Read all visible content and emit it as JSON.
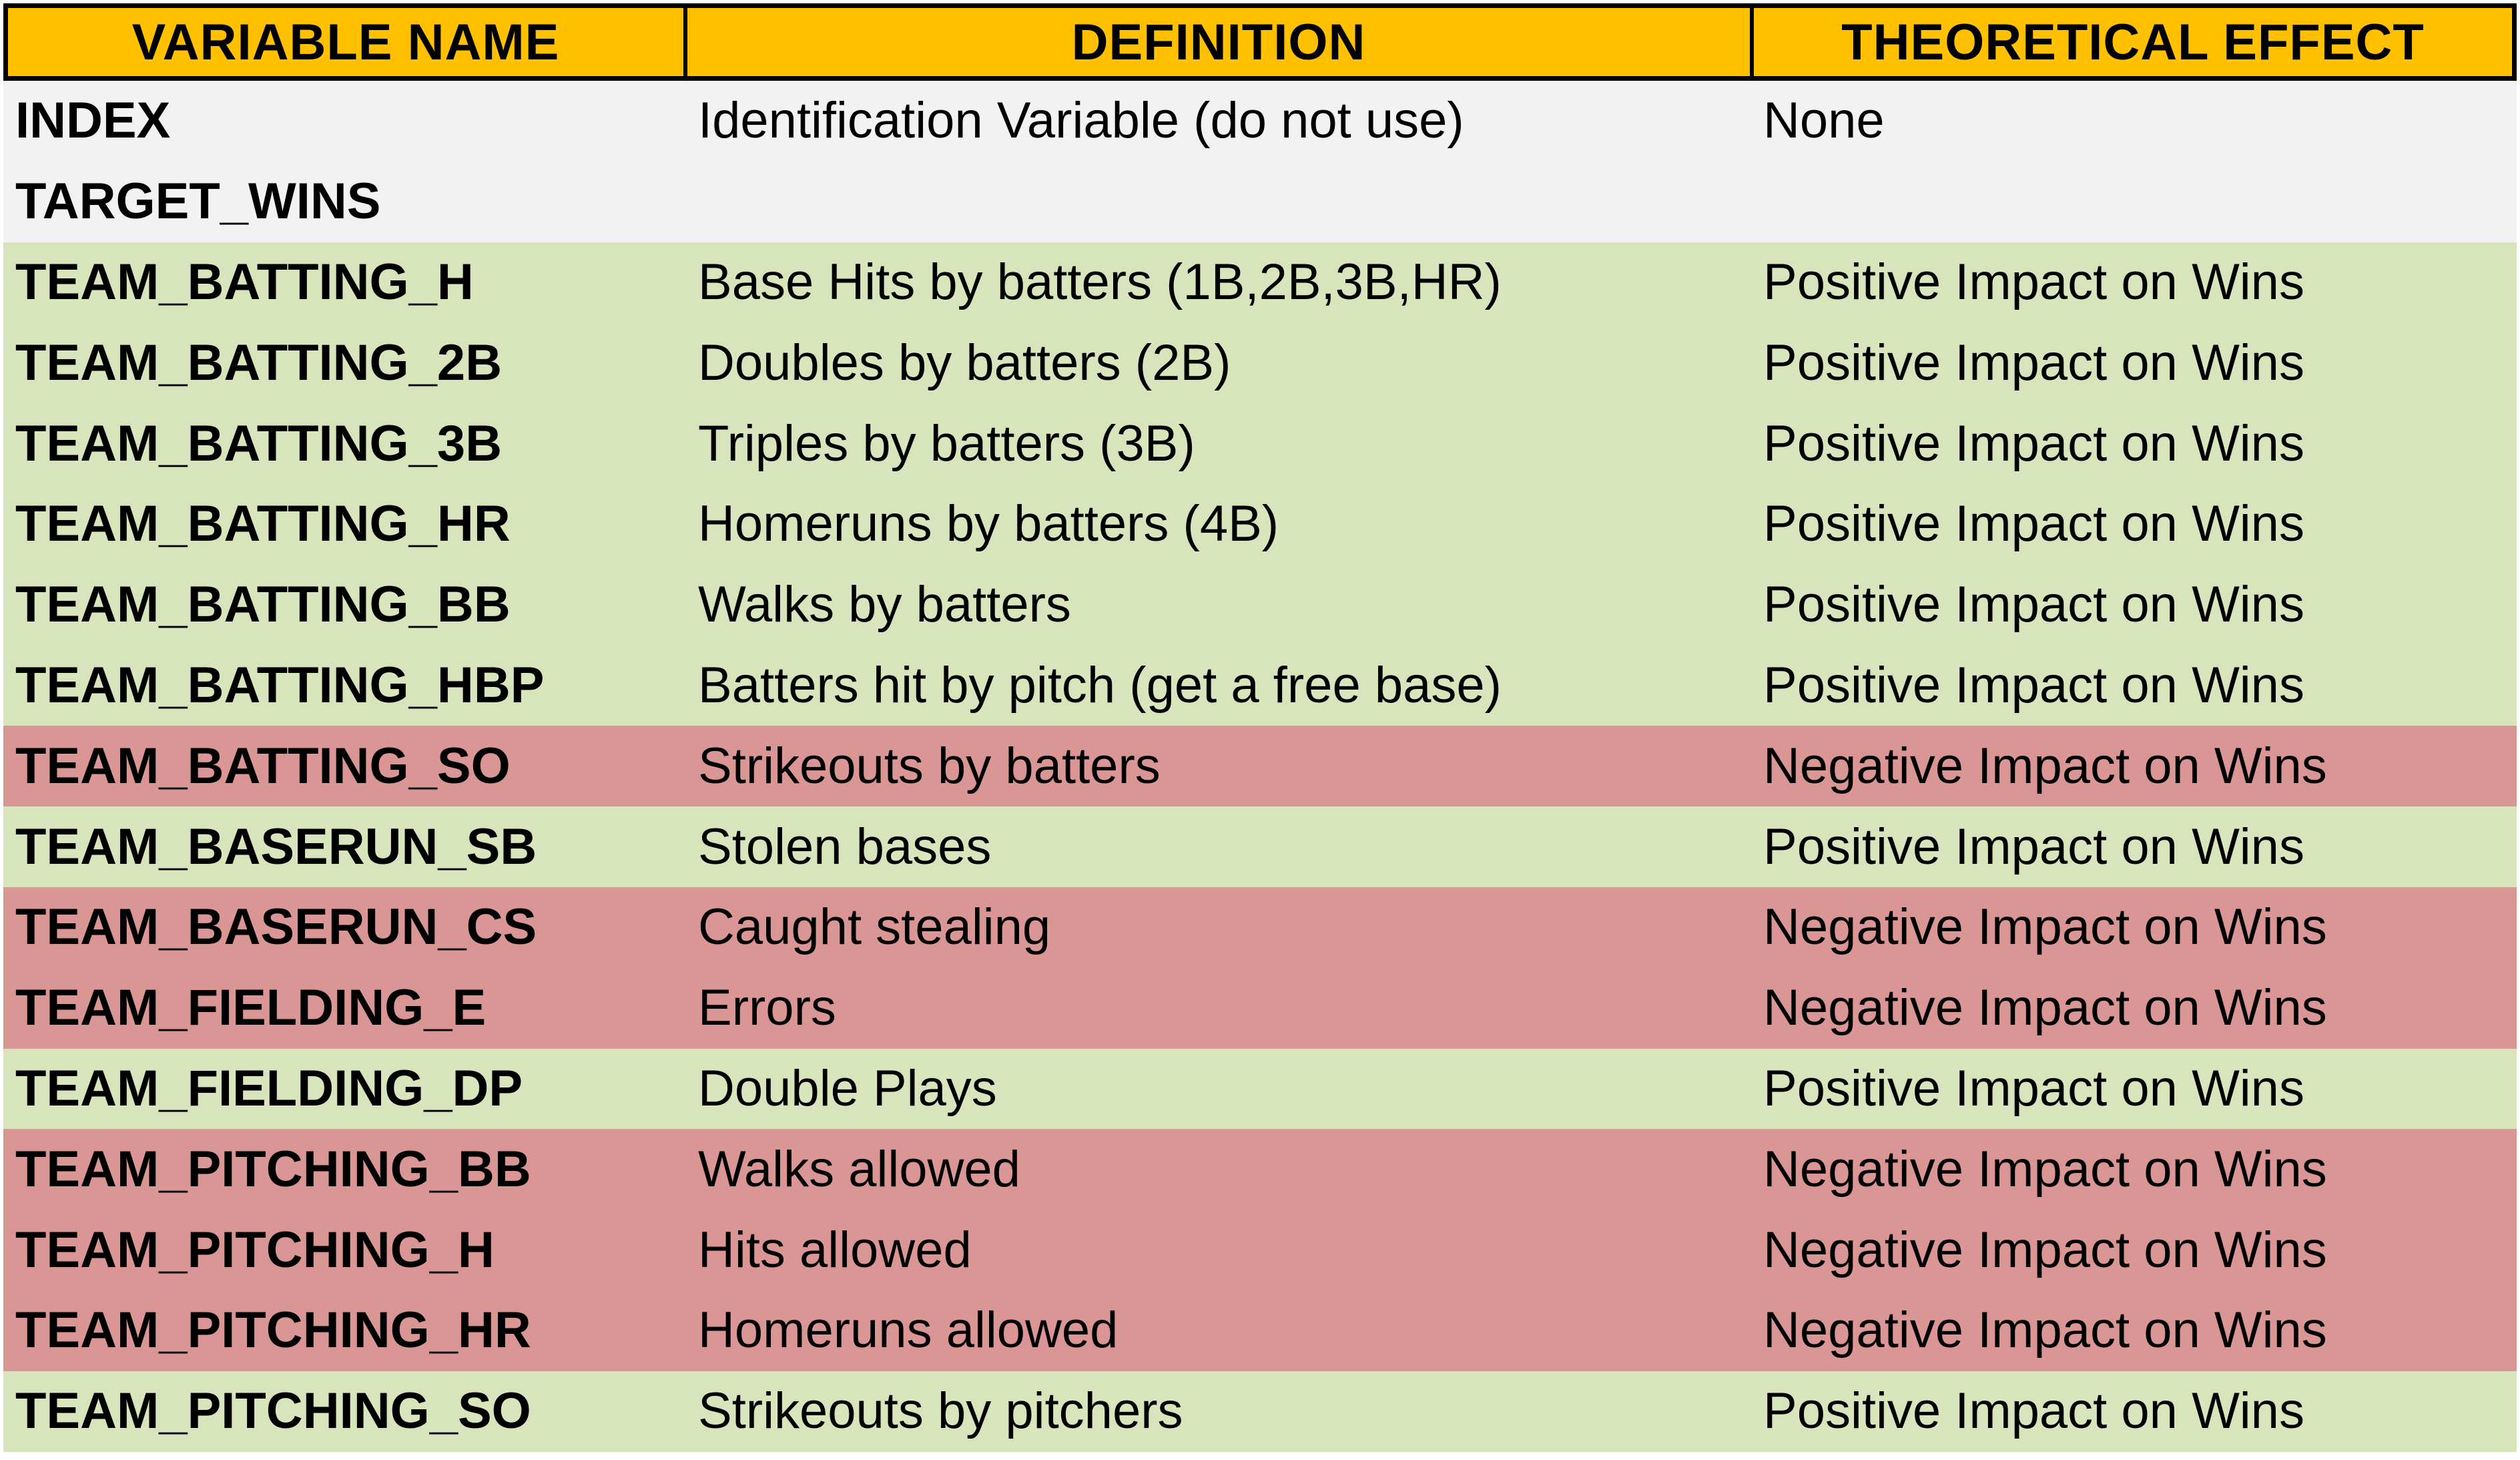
{
  "colors": {
    "header_bg": "#ffc000",
    "neutral": "#f2f2f2",
    "positive": "#d8e4bc",
    "negative": "#da9694"
  },
  "headers": [
    "VARIABLE NAME",
    "DEFINITION",
    "THEORETICAL EFFECT"
  ],
  "rows": [
    {
      "name": "INDEX",
      "definition": "Identification Variable (do not use)",
      "effect": "None",
      "impact": "neutral"
    },
    {
      "name": "TARGET_WINS",
      "definition": "",
      "effect": "",
      "impact": "neutral"
    },
    {
      "name": "TEAM_BATTING_H",
      "definition": "Base Hits by batters (1B,2B,3B,HR)",
      "effect": "Positive Impact on Wins",
      "impact": "positive"
    },
    {
      "name": "TEAM_BATTING_2B",
      "definition": "Doubles by batters (2B)",
      "effect": "Positive Impact on Wins",
      "impact": "positive"
    },
    {
      "name": "TEAM_BATTING_3B",
      "definition": "Triples by batters (3B)",
      "effect": "Positive Impact on Wins",
      "impact": "positive"
    },
    {
      "name": "TEAM_BATTING_HR",
      "definition": "Homeruns by batters (4B)",
      "effect": "Positive Impact on Wins",
      "impact": "positive"
    },
    {
      "name": "TEAM_BATTING_BB",
      "definition": "Walks by batters",
      "effect": "Positive Impact on Wins",
      "impact": "positive"
    },
    {
      "name": "TEAM_BATTING_HBP",
      "definition": "Batters hit by pitch (get a free base)",
      "effect": "Positive Impact on Wins",
      "impact": "positive"
    },
    {
      "name": "TEAM_BATTING_SO",
      "definition": "Strikeouts by batters",
      "effect": "Negative Impact on Wins",
      "impact": "negative"
    },
    {
      "name": "TEAM_BASERUN_SB",
      "definition": "Stolen bases",
      "effect": "Positive Impact on Wins",
      "impact": "positive"
    },
    {
      "name": "TEAM_BASERUN_CS",
      "definition": "Caught stealing",
      "effect": "Negative Impact on Wins",
      "impact": "negative"
    },
    {
      "name": "TEAM_FIELDING_E",
      "definition": "Errors",
      "effect": "Negative Impact on Wins",
      "impact": "negative"
    },
    {
      "name": "TEAM_FIELDING_DP",
      "definition": "Double Plays",
      "effect": "Positive Impact on Wins",
      "impact": "positive"
    },
    {
      "name": "TEAM_PITCHING_BB",
      "definition": "Walks allowed",
      "effect": "Negative Impact on Wins",
      "impact": "negative"
    },
    {
      "name": "TEAM_PITCHING_H",
      "definition": "Hits allowed",
      "effect": "Negative Impact on Wins",
      "impact": "negative"
    },
    {
      "name": "TEAM_PITCHING_HR",
      "definition": "Homeruns allowed",
      "effect": "Negative Impact on Wins",
      "impact": "negative"
    },
    {
      "name": "TEAM_PITCHING_SO",
      "definition": "Strikeouts by pitchers",
      "effect": "Positive Impact on Wins",
      "impact": "positive"
    }
  ]
}
